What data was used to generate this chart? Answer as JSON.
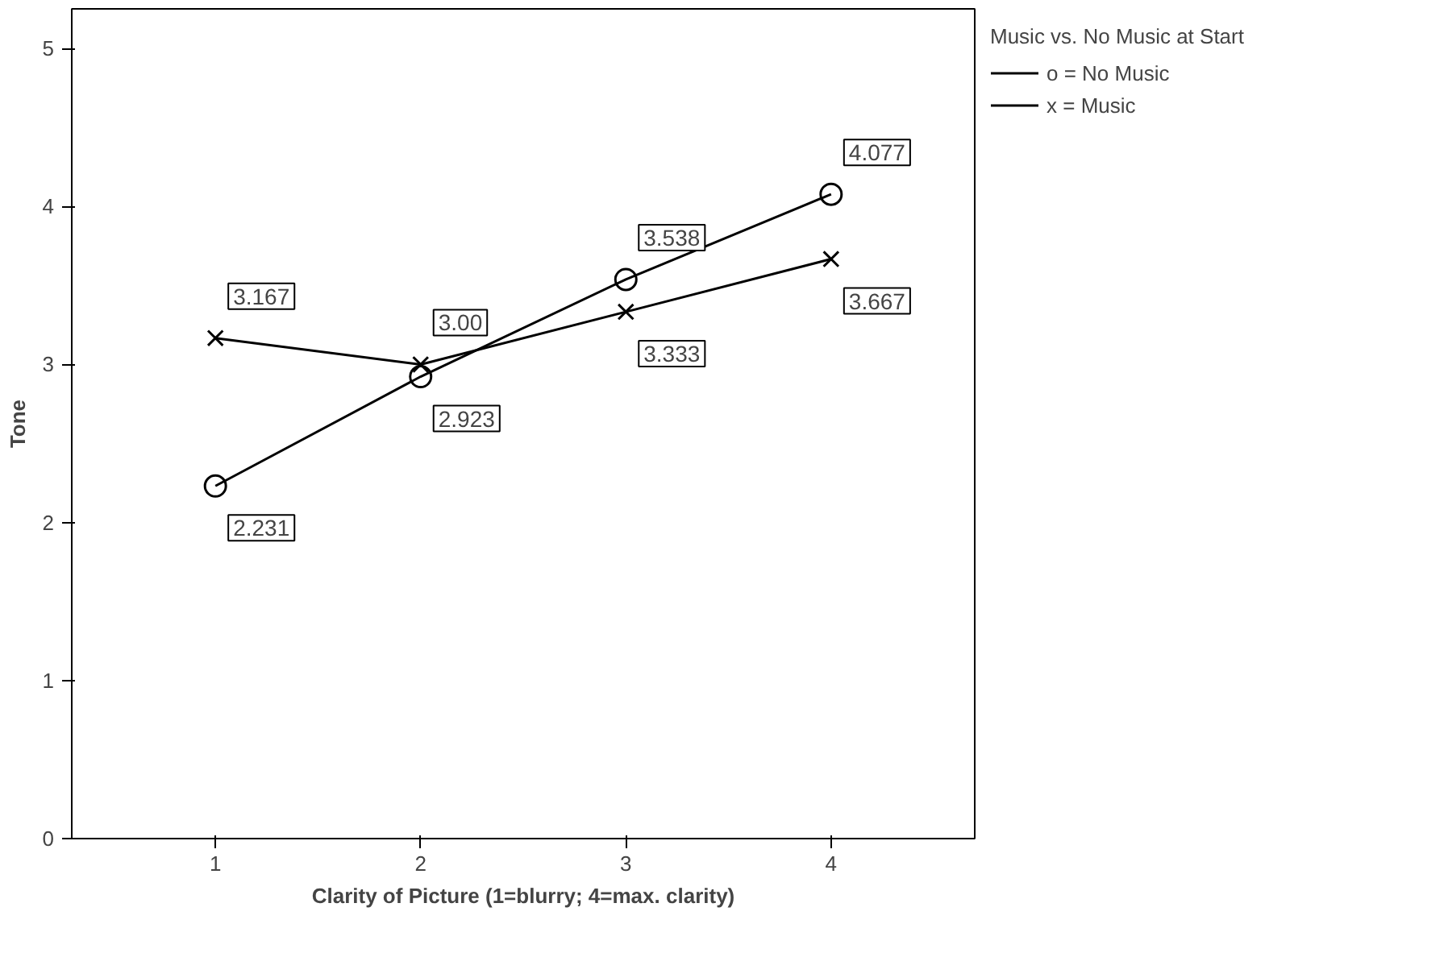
{
  "chart_data": {
    "type": "line",
    "xlabel": "Clarity of Picture (1=blurry; 4=max. clarity)",
    "ylabel": "Tone",
    "legend_title": "Music vs. No Music at Start",
    "x": [
      1,
      2,
      3,
      4
    ],
    "series": [
      {
        "name": "o = No Music",
        "color": "#000000",
        "marker": "circle",
        "values": [
          2.231,
          2.923,
          3.538,
          4.077
        ],
        "value_labels": [
          "2.231",
          "2.923",
          "3.538",
          "4.077"
        ]
      },
      {
        "name": "x = Music",
        "color": "#000000",
        "marker": "cross",
        "values": [
          3.167,
          3.0,
          3.333,
          3.667
        ],
        "value_labels": [
          "3.167",
          "3.00",
          "3.333",
          "3.667"
        ]
      }
    ],
    "xlim": [
      0.3,
      4.7
    ],
    "ylim": [
      0,
      5.25
    ],
    "xticks": [
      1,
      2,
      3,
      4
    ],
    "yticks": [
      0,
      1,
      2,
      3,
      4,
      5
    ],
    "grid": false,
    "legend": "top right",
    "line_style": "solid"
  }
}
